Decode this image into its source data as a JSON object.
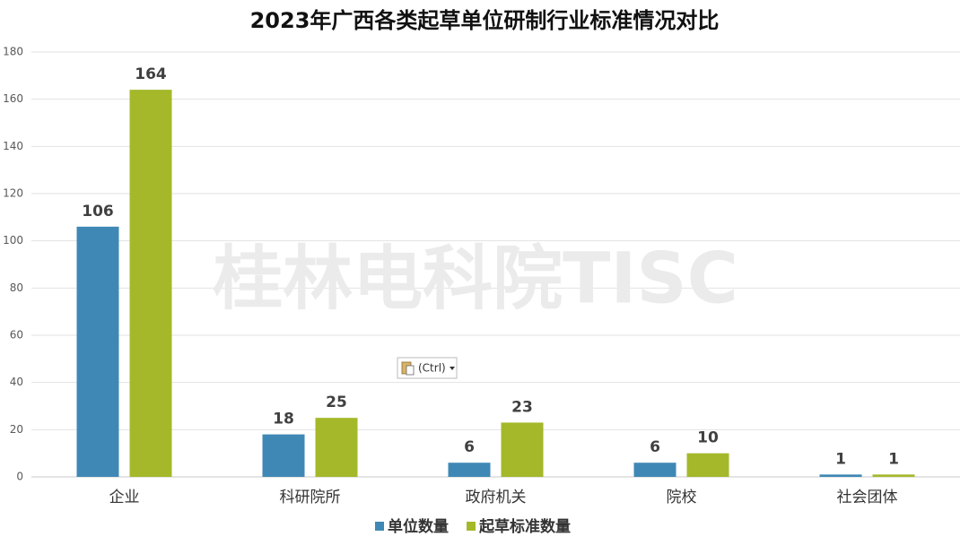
{
  "chart_data": {
    "type": "bar",
    "title": "2023年广西各类起草单位研制行业标准情况对比",
    "categories": [
      "企业",
      "科研院所",
      "政府机关",
      "院校",
      "社会团体"
    ],
    "series": [
      {
        "name": "单位数量",
        "color": "#3f88b5",
        "values": [
          106,
          18,
          6,
          6,
          1
        ]
      },
      {
        "name": "起草标准数量",
        "color": "#a5b829",
        "values": [
          164,
          25,
          23,
          10,
          1
        ]
      }
    ],
    "ylim": [
      0,
      180
    ],
    "yticks": [
      0,
      20,
      40,
      60,
      80,
      100,
      120,
      140,
      160,
      180
    ],
    "grid": true,
    "legend": "bottom",
    "watermark": "桂林电科院TISC",
    "paste_hint": "(Ctrl)"
  }
}
